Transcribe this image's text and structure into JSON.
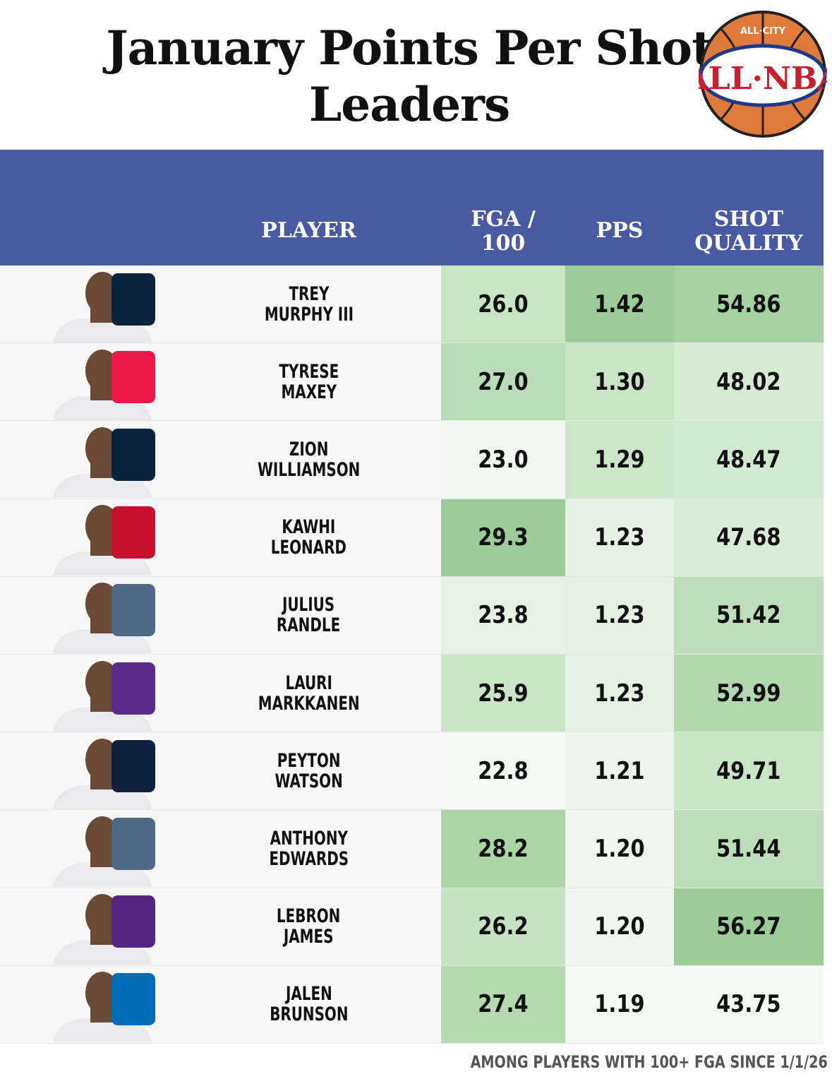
{
  "title": "January Points Per Shot Leaders",
  "logo": {
    "top_text": "ALL·CITY",
    "main_text": "ALL·NBA",
    "icon": "basketball-logo"
  },
  "header": {
    "player": "PLAYER",
    "fga": "FGA / 100",
    "pps": "PPS",
    "shot_quality": "SHOT QUALITY",
    "color": "#4a5aa2"
  },
  "footer": "AMONG PLAYERS WITH 100+ FGA SINCE 1/1/26",
  "chart_data": {
    "type": "table",
    "title": "January Points Per Shot Leaders",
    "columns": [
      "PLAYER",
      "FGA / 100",
      "PPS",
      "SHOT QUALITY"
    ],
    "rows": [
      {
        "player": "TREY\nMURPHY III",
        "fga": "26.0",
        "pps": "1.42",
        "sq": "54.86",
        "team_icon": "pelicans-logo",
        "team_color": "#0c2340"
      },
      {
        "player": "TYRESE\nMAXEY",
        "fga": "27.0",
        "pps": "1.30",
        "sq": "48.02",
        "team_icon": "76ers-logo",
        "team_color": "#ed174c"
      },
      {
        "player": "ZION\nWILLIAMSON",
        "fga": "23.0",
        "pps": "1.29",
        "sq": "48.47",
        "team_icon": "pelicans-logo",
        "team_color": "#0c2340"
      },
      {
        "player": "KAWHI\nLEONARD",
        "fga": "29.3",
        "pps": "1.23",
        "sq": "47.68",
        "team_icon": "clippers-logo",
        "team_color": "#c8102e"
      },
      {
        "player": "JULIUS\nRANDLE",
        "fga": "23.8",
        "pps": "1.23",
        "sq": "51.42",
        "team_icon": "timberwolves-logo",
        "team_color": "#4f6a87"
      },
      {
        "player": "LAURI\nMARKKANEN",
        "fga": "25.9",
        "pps": "1.23",
        "sq": "52.99",
        "team_icon": "jazz-logo",
        "team_color": "#5b2b8c"
      },
      {
        "player": "PEYTON\nWATSON",
        "fga": "22.8",
        "pps": "1.21",
        "sq": "49.71",
        "team_icon": "nuggets-logo",
        "team_color": "#0e2240"
      },
      {
        "player": "ANTHONY\nEDWARDS",
        "fga": "28.2",
        "pps": "1.20",
        "sq": "51.44",
        "team_icon": "timberwolves-logo",
        "team_color": "#4f6a87"
      },
      {
        "player": "LEBRON\nJAMES",
        "fga": "26.2",
        "pps": "1.20",
        "sq": "56.27",
        "team_icon": "lakers-logo",
        "team_color": "#552583"
      },
      {
        "player": "JALEN\nBRUNSON",
        "fga": "27.4",
        "pps": "1.19",
        "sq": "43.75",
        "team_icon": "knicks-logo",
        "team_color": "#006bb6"
      }
    ],
    "color_scale": {
      "low": "#f4f9f2",
      "high": "#9ccc98"
    }
  }
}
